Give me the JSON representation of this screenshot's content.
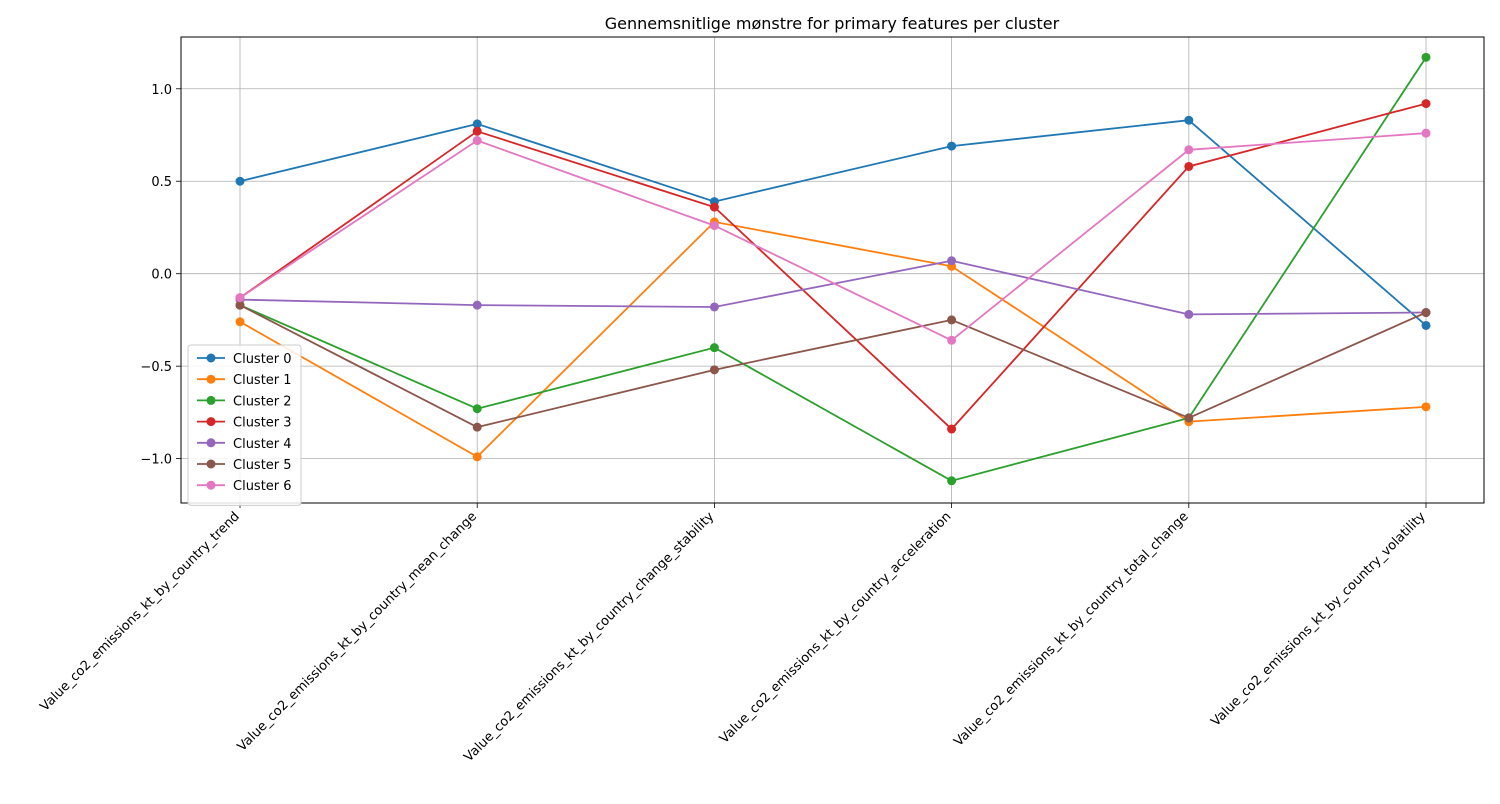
{
  "chart_data": {
    "type": "line",
    "title": "Gennemsnitlige mønstre for primary features per cluster",
    "xlabel": "",
    "ylabel": "",
    "categories": [
      "Value_co2_emissions_kt_by_country_trend",
      "Value_co2_emissions_kt_by_country_mean_change",
      "Value_co2_emissions_kt_by_country_change_stability",
      "Value_co2_emissions_kt_by_country_acceleration",
      "Value_co2_emissions_kt_by_country_total_change",
      "Value_co2_emissions_kt_by_country_volatility"
    ],
    "ylim": [
      -1.24,
      1.28
    ],
    "yticks": [
      -1.0,
      -0.5,
      0.0,
      0.5,
      1.0
    ],
    "ytick_labels": [
      "−1.0",
      "−0.5",
      "0.0",
      "0.5",
      "1.0"
    ],
    "grid": true,
    "legend_position": "lower-left",
    "series": [
      {
        "name": "Cluster 0",
        "color": "#1f77b4",
        "values": [
          0.5,
          0.81,
          0.39,
          0.69,
          0.83,
          -0.28
        ]
      },
      {
        "name": "Cluster 1",
        "color": "#ff7f0e",
        "values": [
          -0.26,
          -0.99,
          0.28,
          0.04,
          -0.8,
          -0.72
        ]
      },
      {
        "name": "Cluster 2",
        "color": "#2ca02c",
        "values": [
          -0.17,
          -0.73,
          -0.4,
          -1.12,
          -0.78,
          1.17
        ]
      },
      {
        "name": "Cluster 3",
        "color": "#d62728",
        "values": [
          -0.13,
          0.77,
          0.36,
          -0.84,
          0.58,
          0.92
        ]
      },
      {
        "name": "Cluster 4",
        "color": "#9467bd",
        "values": [
          -0.14,
          -0.17,
          -0.18,
          0.07,
          -0.22,
          -0.21
        ]
      },
      {
        "name": "Cluster 5",
        "color": "#8c564b",
        "values": [
          -0.17,
          -0.83,
          -0.52,
          -0.25,
          -0.78,
          -0.21
        ]
      },
      {
        "name": "Cluster 6",
        "color": "#e377c2",
        "values": [
          -0.13,
          0.72,
          0.26,
          -0.36,
          0.67,
          0.76
        ]
      }
    ]
  }
}
